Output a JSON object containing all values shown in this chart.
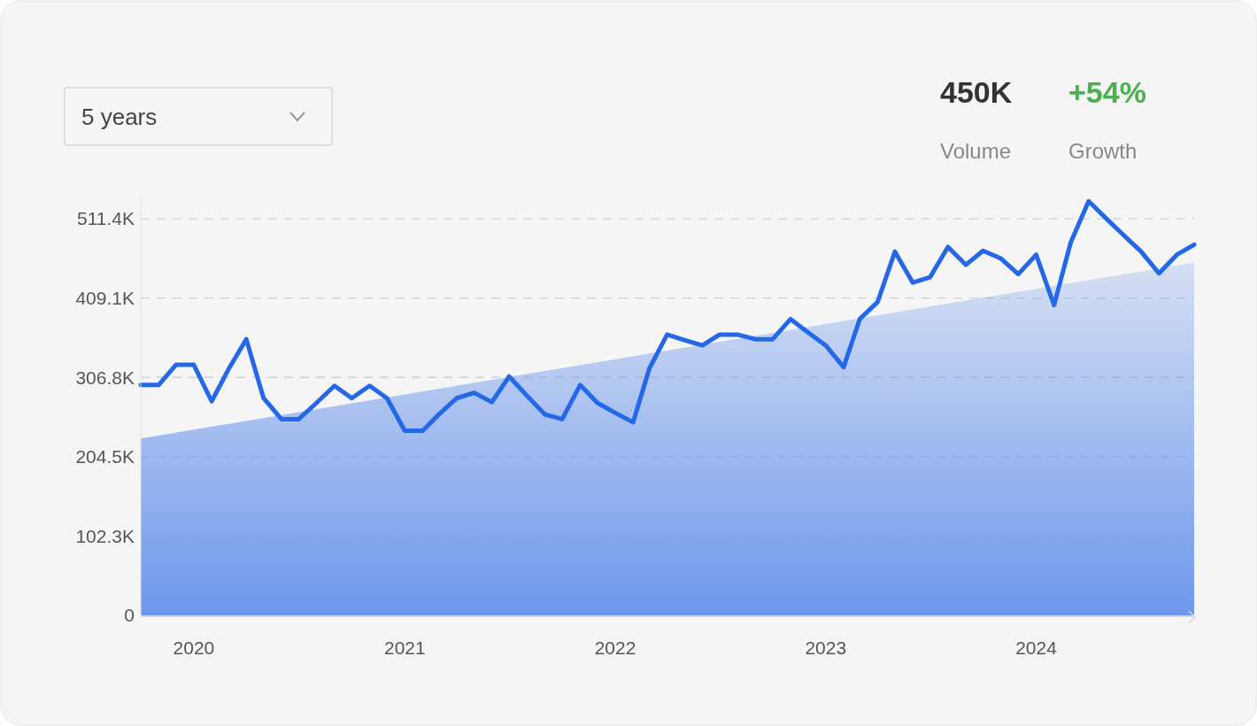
{
  "chart_data": {
    "type": "line",
    "annotations": [
      "5 years",
      "450K",
      "Volume",
      "+54%",
      "Growth"
    ],
    "xlim": [
      "2019-10",
      "2024-10"
    ],
    "xticks": [
      "2020",
      "2021",
      "2022",
      "2023",
      "2024"
    ],
    "ylim": [
      0,
      540000
    ],
    "yticks": [
      0,
      {
        "value": 102300,
        "label": "102.3K"
      },
      {
        "value": 204500,
        "label": "204.5K"
      },
      {
        "value": 306800,
        "label": "306.8K"
      },
      {
        "value": 409100,
        "label": "409.1K"
      },
      {
        "value": 511400,
        "label": "511.4K"
      }
    ],
    "grid": "y",
    "marker": "none",
    "line_style": "solid",
    "series": [
      {
        "type": "area",
        "color": "#6a95ec",
        "x": [
          "2019-10",
          "2024-10"
        ],
        "values": [
          228000,
          455000
        ]
      },
      {
        "color": "#2468e8",
        "x": [
          "2019-10",
          "2019-11",
          "2019-12",
          "2020-01",
          "2020-02",
          "2020-03",
          "2020-04",
          "2020-05",
          "2020-06",
          "2020-07",
          "2020-08",
          "2020-09",
          "2020-10",
          "2020-11",
          "2020-12",
          "2021-01",
          "2021-02",
          "2021-03",
          "2021-04",
          "2021-05",
          "2021-06",
          "2021-07",
          "2021-08",
          "2021-09",
          "2021-10",
          "2021-11",
          "2021-12",
          "2022-01",
          "2022-02",
          "2022-03",
          "2022-04",
          "2022-05",
          "2022-06",
          "2022-07",
          "2022-08",
          "2022-09",
          "2022-10",
          "2022-11",
          "2022-12",
          "2023-01",
          "2023-02",
          "2023-03",
          "2023-04",
          "2023-05",
          "2023-06",
          "2023-07",
          "2023-08",
          "2023-09",
          "2023-10",
          "2023-11",
          "2023-12",
          "2024-01",
          "2024-02",
          "2024-03",
          "2024-04",
          "2024-05",
          "2024-06",
          "2024-07",
          "2024-08",
          "2024-09",
          "2024-10"
        ],
        "values": [
          297000,
          297000,
          323000,
          323000,
          276000,
          317000,
          356000,
          280000,
          253000,
          253000,
          274000,
          296000,
          280000,
          296000,
          280000,
          238000,
          238000,
          259000,
          280000,
          287000,
          275000,
          308000,
          283000,
          259000,
          253000,
          297000,
          274000,
          261000,
          249000,
          318000,
          362000,
          355000,
          348000,
          362000,
          362000,
          356000,
          356000,
          382000,
          365000,
          348000,
          320000,
          382000,
          404000,
          469000,
          429000,
          436000,
          475000,
          452000,
          470000,
          460000,
          440000,
          465000,
          400000,
          481000,
          534000,
          512000,
          490000,
          469000,
          441000,
          465000,
          478000
        ]
      }
    ]
  }
}
